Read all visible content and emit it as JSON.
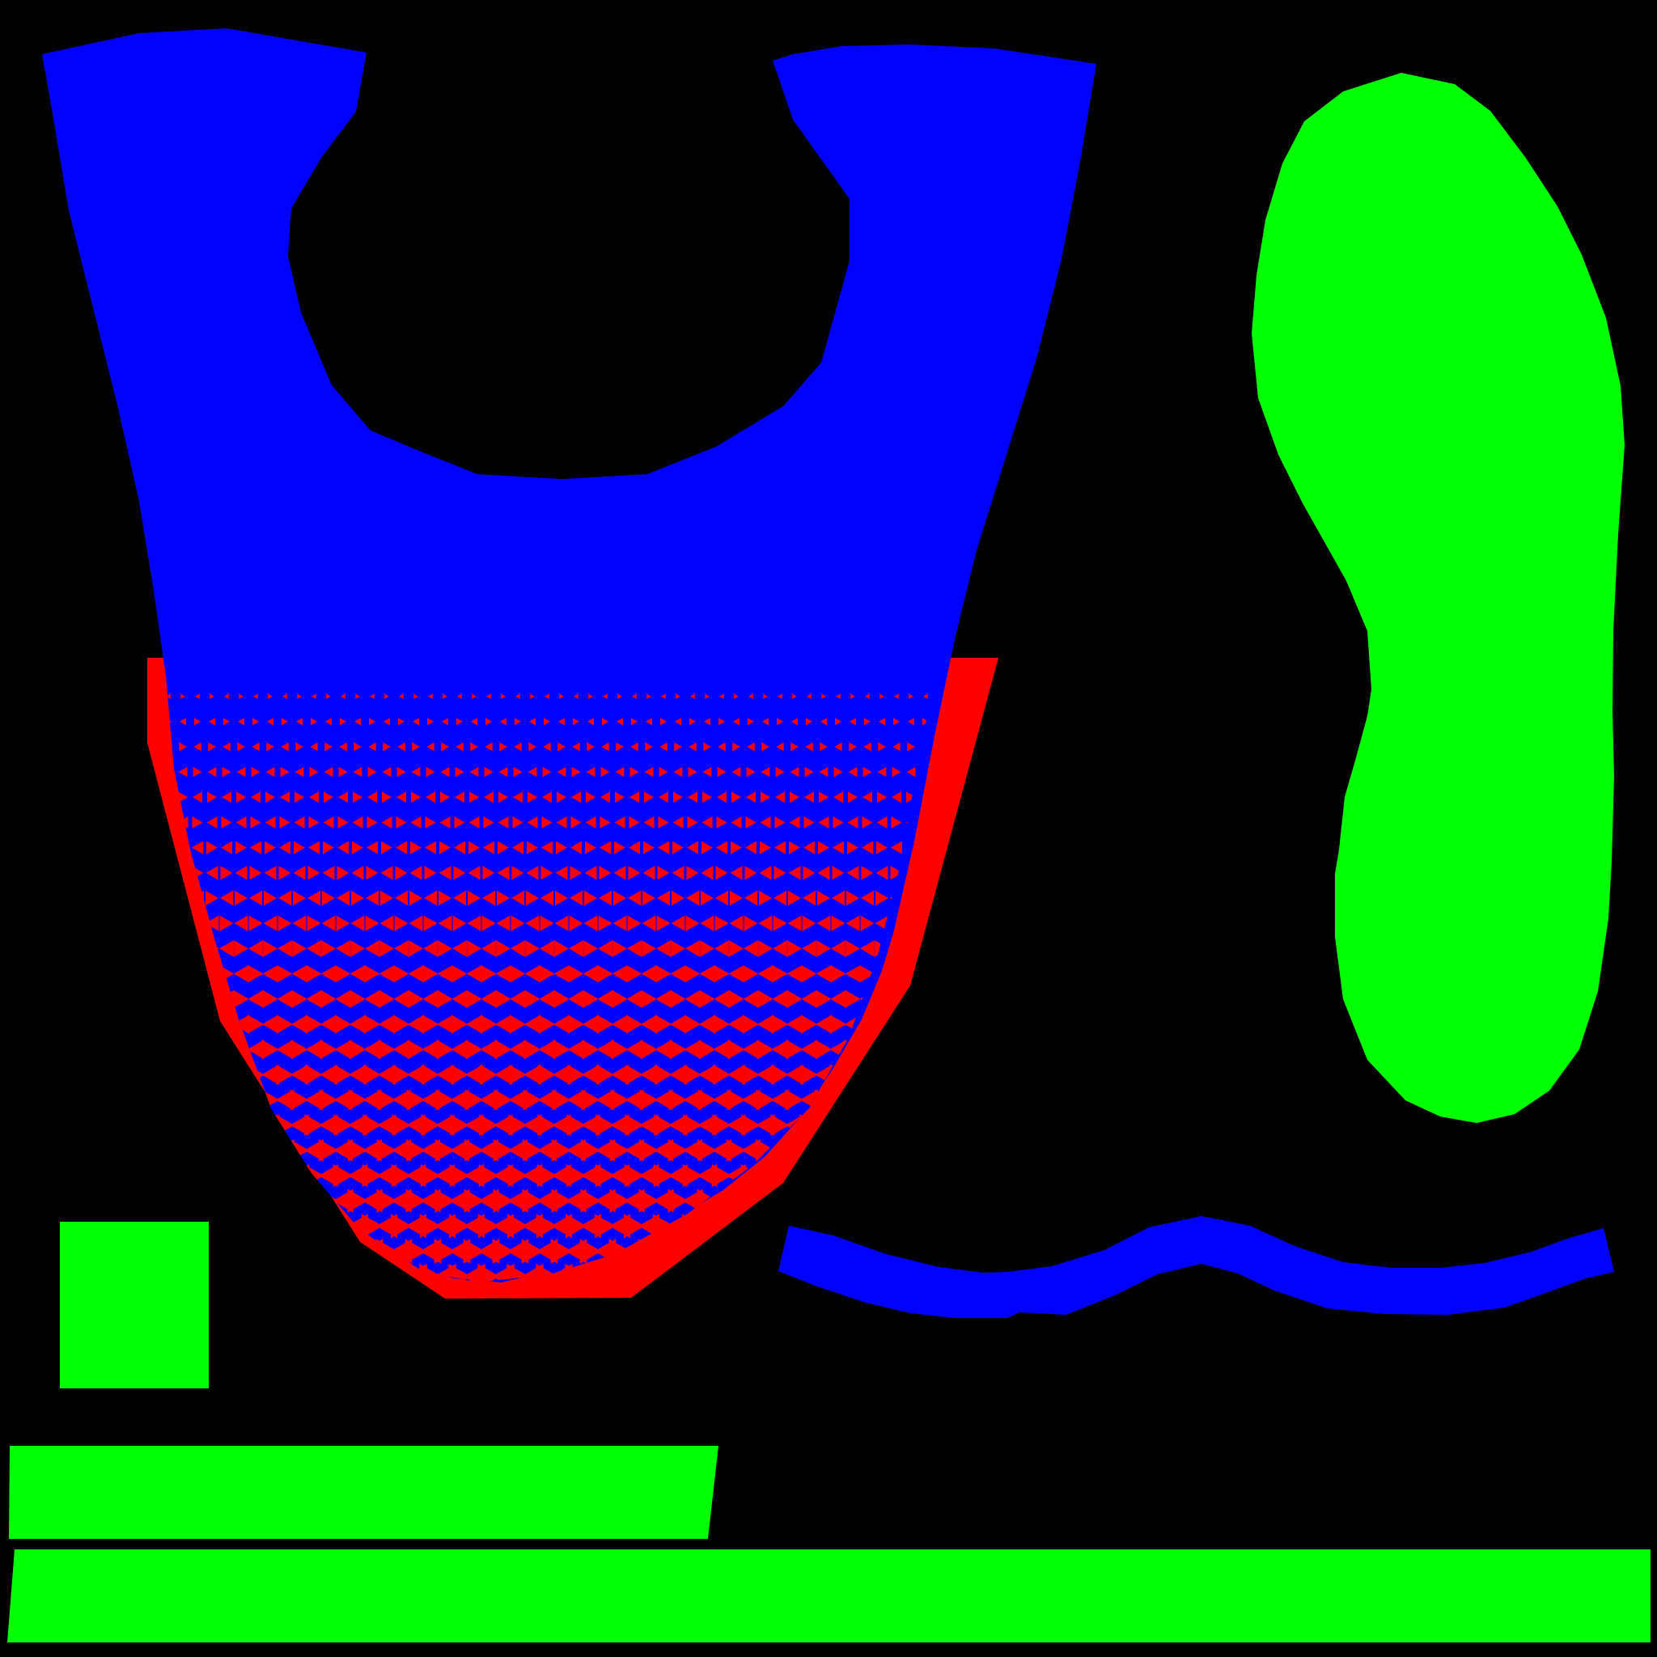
{
  "colors": {
    "background": "#000000",
    "blue": "#0000ff",
    "red": "#ff0000",
    "green": "#00ff00"
  }
}
